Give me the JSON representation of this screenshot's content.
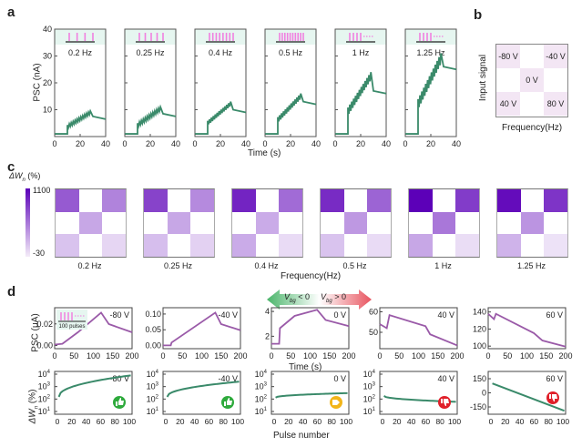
{
  "panels": {
    "a": "a",
    "b": "b",
    "c": "c",
    "d": "d"
  },
  "chart_data": [
    {
      "type": "line",
      "panel": "a",
      "ylabel": "PSC (nA)",
      "xlabel": "Time (s)",
      "ylim": [
        0,
        40
      ],
      "xlim": [
        0,
        40
      ],
      "yticks": [
        "10",
        "20",
        "30",
        "40"
      ],
      "xticks": [
        "0",
        "20",
        "40"
      ],
      "series_color": "#3a8a6a",
      "subplots": [
        {
          "label": "0.2 Hz",
          "pulses": 4,
          "continued": false,
          "peak": 9.5,
          "end": 6.5
        },
        {
          "label": "0.25 Hz",
          "pulses": 5,
          "continued": false,
          "peak": 11,
          "end": 7.5
        },
        {
          "label": "0.4 Hz",
          "pulses": 8,
          "continued": false,
          "peak": 13,
          "end": 9
        },
        {
          "label": "0.5 Hz",
          "pulses": 10,
          "continued": false,
          "peak": 16,
          "end": 12
        },
        {
          "label": "1 Hz",
          "pulses": 4,
          "continued": true,
          "peak": 24,
          "end": 16
        },
        {
          "label": "1.25 Hz",
          "pulses": 4,
          "continued": true,
          "peak": 31,
          "end": 25
        }
      ]
    },
    {
      "type": "heatmap",
      "panel": "b",
      "ylabel": "Input signal",
      "xlabel": "Frequency(Hz)",
      "cells": [
        "-80 V",
        "",
        "-40 V",
        "",
        "0 V",
        "",
        "40 V",
        "",
        "80 V"
      ]
    },
    {
      "type": "heatmap",
      "panel": "c",
      "colorbar_label": "ΔW",
      "colorbar_sub": "n",
      "colorbar_unit": " (%)",
      "colorbar_max": "1100",
      "colorbar_min": "-30",
      "xlabel": "Frequency(Hz)",
      "maps": [
        {
          "label": "0.2 Hz",
          "values": [
            0.62,
            0,
            0.45,
            0,
            0.3,
            0,
            0.18,
            0,
            0.1
          ]
        },
        {
          "label": "0.25 Hz",
          "values": [
            0.72,
            0,
            0.42,
            0,
            0.3,
            0,
            0.2,
            0,
            0.12
          ]
        },
        {
          "label": "0.4 Hz",
          "values": [
            0.85,
            0,
            0.55,
            0,
            0.28,
            0,
            0.28,
            0,
            0.08
          ]
        },
        {
          "label": "0.5 Hz",
          "values": [
            0.82,
            0,
            0.58,
            0,
            0.36,
            0,
            0.18,
            0,
            0.08
          ]
        },
        {
          "label": "1 Hz",
          "values": [
            1.0,
            0,
            0.75,
            0,
            0.5,
            0,
            0.3,
            0,
            0.07
          ]
        },
        {
          "label": "1.25 Hz",
          "values": [
            0.95,
            0,
            0.78,
            0,
            0.38,
            0,
            0.25,
            0,
            0.05
          ]
        }
      ]
    },
    {
      "type": "line",
      "panel": "d-top",
      "ylabel": "PSC (μA)",
      "xlabel": "Time (s)",
      "inset_label": "100 pulses",
      "xticks": [
        "0",
        "50",
        "100",
        "150",
        "200"
      ],
      "subplots": [
        {
          "label": "-80 V",
          "yticks": [
            "0.00",
            "0.02"
          ],
          "ylim": [
            -0.003,
            0.035
          ]
        },
        {
          "label": "-40 V",
          "yticks": [
            "0.00",
            "0.05",
            "0.10"
          ],
          "ylim": [
            -0.01,
            0.12
          ]
        },
        {
          "label": "0 V",
          "yticks": [
            "2",
            "4"
          ],
          "ylim": [
            1,
            4.3
          ]
        },
        {
          "label": "40 V",
          "yticks": [
            "50",
            "60"
          ],
          "ylim": [
            42,
            62
          ]
        },
        {
          "label": "60 V",
          "yticks": [
            "100",
            "120",
            "140"
          ],
          "ylim": [
            97,
            145
          ]
        }
      ]
    },
    {
      "type": "scatter",
      "panel": "d-bottom",
      "ylabel": "ΔW",
      "ylabel_sub": "n",
      "ylabel_unit": " (%)",
      "xlabel": "Pulse number",
      "xticks": [
        "0",
        "20",
        "40",
        "60",
        "80",
        "100"
      ],
      "subplots": [
        {
          "label": "-80 V",
          "scale": "log",
          "start": 150,
          "end": 8000,
          "badge": "thumbs-up",
          "badge_color": "#2eaa3c"
        },
        {
          "label": "-40 V",
          "scale": "log",
          "start": 150,
          "end": 2500,
          "badge": "thumbs-up",
          "badge_color": "#2eaa3c"
        },
        {
          "label": "0 V",
          "scale": "log",
          "start": 130,
          "end": 300,
          "badge": "neutral",
          "badge_color": "#f2b51a"
        },
        {
          "label": "40 V",
          "scale": "log",
          "start": 180,
          "end": 60,
          "badge": "thumbs-down",
          "badge_color": "#e0202a"
        },
        {
          "label": "60 V",
          "scale": "linear",
          "yticks": [
            "150",
            "0",
            "-150"
          ],
          "start": 100,
          "end": -190,
          "badge": "thumbs-down",
          "badge_color": "#e0202a"
        }
      ],
      "log_ticks": [
        "10",
        "10",
        "10",
        "10"
      ],
      "log_exps": [
        "4",
        "3",
        "2",
        "1"
      ]
    }
  ],
  "arrow": {
    "left": "V",
    "left_sub": "bg",
    "left_op": " < 0",
    "right": "V",
    "right_sub": "bg",
    "right_op": " > 0"
  }
}
